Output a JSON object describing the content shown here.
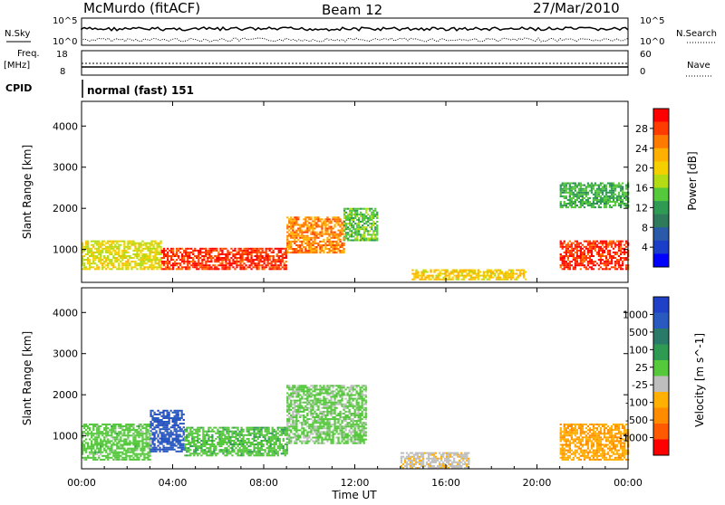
{
  "header": {
    "station": "McMurdo (fitACF)",
    "beam": "Beam 12",
    "date": "27/Mar/2010"
  },
  "top_panel": {
    "nsky_label": "N.Sky",
    "nsearch_label": "N.Search",
    "nsky_ticks": [
      "10^5",
      "10^0"
    ],
    "nsearch_ticks": [
      "10^5",
      "10^0"
    ],
    "freq_label_line1": "Freq.",
    "freq_label_line2": "[MHz]",
    "freq_ticks": [
      "18",
      "8"
    ],
    "nave_label": "Nave",
    "nave_ticks": [
      "60",
      "0"
    ],
    "cpid_label": "CPID",
    "cpid_value": "normal (fast) 151"
  },
  "power_panel": {
    "ylabel": "Slant Range [km]",
    "colorbar_label": "Power [dB]",
    "colorbar_ticks": [
      "28",
      "24",
      "20",
      "16",
      "12",
      "8",
      "4"
    ],
    "colorbar_colors": [
      "#ff0000",
      "#ff3c00",
      "#ff7a00",
      "#ffb000",
      "#f5d000",
      "#b4dc14",
      "#55c83c",
      "#2e9a52",
      "#2f7a5a",
      "#2a5aa8",
      "#1a3ec8",
      "#0000ff"
    ]
  },
  "velocity_panel": {
    "ylabel": "Slant Range [km]",
    "colorbar_label": "Velocity [m s^-1]",
    "colorbar_ticks": [
      "1000",
      "500",
      "100",
      "25",
      "-25",
      "-100",
      "-500",
      "-1000"
    ],
    "colorbar_colors": [
      "#2040c8",
      "#2a5ac0",
      "#2a7a6a",
      "#2e9a52",
      "#55c83c",
      "#bebebe",
      "#ffb000",
      "#ff8c00",
      "#ff5a00",
      "#ff0000"
    ]
  },
  "x_axis": {
    "label": "Time UT",
    "ticks": [
      "00:00",
      "04:00",
      "08:00",
      "12:00",
      "16:00",
      "20:00",
      "00:00"
    ]
  },
  "chart_data": [
    {
      "type": "heatmap",
      "title": "Power",
      "x": [
        0,
        24
      ],
      "xlabel": "Time UT",
      "ylabel": "Slant Range [km]",
      "ylim": [
        200,
        4600
      ],
      "yticks": [
        1000,
        2000,
        3000,
        4000
      ],
      "colorbar_label": "Power [dB]",
      "colorbar_range": [
        0,
        30
      ],
      "features": [
        {
          "time": [
            0.0,
            3.5
          ],
          "range": [
            500,
            1200
          ],
          "power": 18
        },
        {
          "time": [
            3.5,
            9.0
          ],
          "range": [
            500,
            1000
          ],
          "power": 28
        },
        {
          "time": [
            9.0,
            11.5
          ],
          "range": [
            900,
            1800
          ],
          "power": 24
        },
        {
          "time": [
            11.5,
            13.0
          ],
          "range": [
            1200,
            2000
          ],
          "power": 14
        },
        {
          "time": [
            14.5,
            19.5
          ],
          "range": [
            250,
            500
          ],
          "power": 20
        },
        {
          "time": [
            21.0,
            24.0
          ],
          "range": [
            500,
            1200
          ],
          "power": 28
        },
        {
          "time": [
            21.0,
            24.0
          ],
          "range": [
            2000,
            2600
          ],
          "power": 12
        }
      ]
    },
    {
      "type": "heatmap",
      "title": "Velocity",
      "x": [
        0,
        24
      ],
      "xlabel": "Time UT",
      "ylabel": "Slant Range [km]",
      "ylim": [
        200,
        4600
      ],
      "yticks": [
        1000,
        2000,
        3000,
        4000
      ],
      "colorbar_label": "Velocity [m s^-1]",
      "colorbar_range": [
        -1000,
        1000
      ],
      "features": [
        {
          "time": [
            0.0,
            3.0
          ],
          "range": [
            400,
            1300
          ],
          "velocity": 100
        },
        {
          "time": [
            3.0,
            4.5
          ],
          "range": [
            600,
            1600
          ],
          "velocity": 800
        },
        {
          "time": [
            4.5,
            9.0
          ],
          "range": [
            500,
            1200
          ],
          "velocity": 150
        },
        {
          "time": [
            9.0,
            12.5
          ],
          "range": [
            800,
            2200
          ],
          "velocity": 50
        },
        {
          "time": [
            14.0,
            17.0
          ],
          "range": [
            200,
            600
          ],
          "velocity": -150
        },
        {
          "time": [
            21.0,
            24.0
          ],
          "range": [
            400,
            1300
          ],
          "velocity": -400
        }
      ]
    }
  ]
}
